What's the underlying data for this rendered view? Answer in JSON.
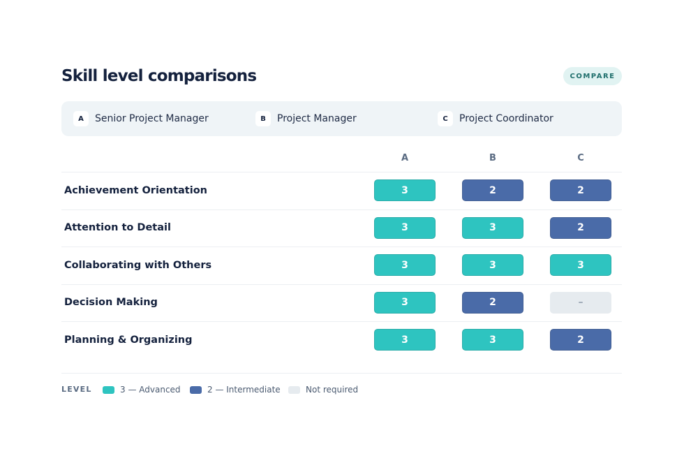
{
  "header": {
    "title": "Skill level comparisons",
    "button": "COMPARE"
  },
  "roles": [
    {
      "key": "A",
      "name": "Senior Project Manager"
    },
    {
      "key": "B",
      "name": "Project Manager"
    },
    {
      "key": "C",
      "name": "Project Coordinator"
    }
  ],
  "table": {
    "columns": [
      "A",
      "B",
      "C"
    ],
    "rows": [
      {
        "skill": "Achievement Orientation",
        "levels": [
          "3",
          "2",
          "2"
        ]
      },
      {
        "skill": "Attention to Detail",
        "levels": [
          "3",
          "3",
          "2"
        ]
      },
      {
        "skill": "Collaborating with Others",
        "levels": [
          "3",
          "3",
          "3"
        ]
      },
      {
        "skill": "Decision Making",
        "levels": [
          "3",
          "2",
          "–"
        ]
      },
      {
        "skill": "Planning & Organizing",
        "levels": [
          "3",
          "3",
          "2"
        ]
      }
    ]
  },
  "legend": {
    "title": "LEVEL",
    "items": [
      {
        "label": "3 — Advanced",
        "color": "#2ec4c0"
      },
      {
        "label": "2 — Intermediate",
        "color": "#4a6ba8"
      },
      {
        "label": "Not required",
        "color": "#e6ebef"
      }
    ]
  }
}
